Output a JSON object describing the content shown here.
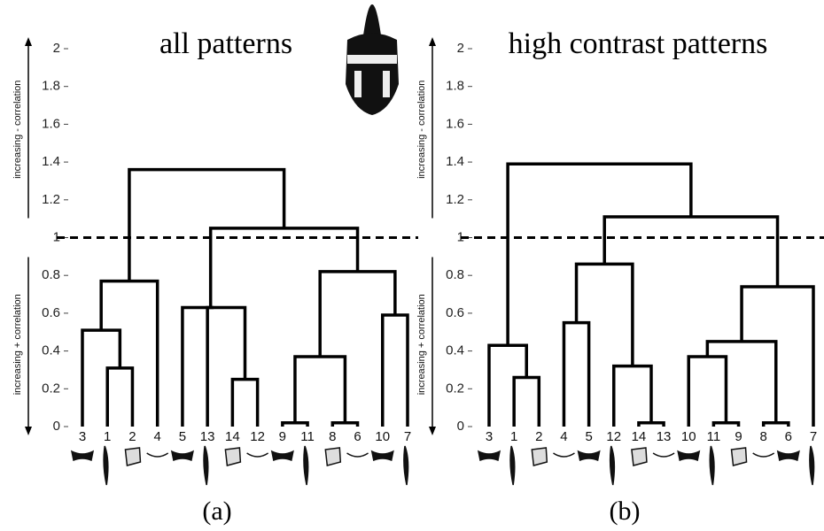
{
  "chart_data": [
    {
      "type": "dendrogram",
      "title": "all patterns",
      "caption": "(a)",
      "upper_axis_label": "increasing - correlation",
      "lower_axis_label": "increasing + correlation",
      "ylim": [
        0,
        2
      ],
      "yticks": [
        0,
        0.2,
        0.4,
        0.6,
        0.8,
        1,
        1.2,
        1.4,
        1.6,
        1.8,
        2
      ],
      "threshold": 1,
      "color": "#000000",
      "categories": [
        "3",
        "1",
        "2",
        "4",
        "5",
        "13",
        "14",
        "12",
        "9",
        "11",
        "8",
        "6",
        "10",
        "7"
      ],
      "merges": [
        {
          "children": [
            1,
            2
          ],
          "height": 0.31
        },
        {
          "children": [
            0,
            14
          ],
          "height": 0.51
        },
        {
          "children": [
            15,
            3
          ],
          "height": 0.77
        },
        {
          "children": [
            6,
            7
          ],
          "height": 0.25
        },
        {
          "children": [
            4,
            17
          ],
          "height": 0.63
        },
        {
          "children": [
            5,
            18
          ],
          "height": 0.63
        },
        {
          "children": [
            8,
            9
          ],
          "height": 0.02
        },
        {
          "children": [
            10,
            11
          ],
          "height": 0.02
        },
        {
          "children": [
            20,
            21
          ],
          "height": 0.37
        },
        {
          "children": [
            12,
            13
          ],
          "height": 0.59
        },
        {
          "children": [
            22,
            23
          ],
          "height": 0.82
        },
        {
          "children": [
            19,
            24
          ],
          "height": 1.05
        },
        {
          "children": [
            16,
            25
          ],
          "height": 1.36
        }
      ]
    },
    {
      "type": "dendrogram",
      "title": "high contrast patterns",
      "caption": "(b)",
      "upper_axis_label": "increasing - correlation",
      "lower_axis_label": "increasing + correlation",
      "ylim": [
        0,
        2
      ],
      "yticks": [
        0,
        0.2,
        0.4,
        0.6,
        0.8,
        1,
        1.2,
        1.4,
        1.6,
        1.8,
        2
      ],
      "threshold": 1,
      "color": "#000000",
      "categories": [
        "3",
        "1",
        "2",
        "4",
        "5",
        "12",
        "14",
        "13",
        "10",
        "11",
        "9",
        "8",
        "6",
        "7"
      ],
      "merges": [
        {
          "children": [
            1,
            2
          ],
          "height": 0.26
        },
        {
          "children": [
            0,
            14
          ],
          "height": 0.43
        },
        {
          "children": [
            3,
            4
          ],
          "height": 0.55
        },
        {
          "children": [
            6,
            7
          ],
          "height": 0.02
        },
        {
          "children": [
            5,
            17
          ],
          "height": 0.32
        },
        {
          "children": [
            16,
            18
          ],
          "height": 0.86
        },
        {
          "children": [
            9,
            10
          ],
          "height": 0.02
        },
        {
          "children": [
            8,
            20
          ],
          "height": 0.37
        },
        {
          "children": [
            11,
            12
          ],
          "height": 0.02
        },
        {
          "children": [
            21,
            22
          ],
          "height": 0.45
        },
        {
          "children": [
            23,
            13
          ],
          "height": 0.74
        },
        {
          "children": [
            19,
            24
          ],
          "height": 1.11
        },
        {
          "children": [
            15,
            25
          ],
          "height": 1.39
        }
      ]
    }
  ]
}
